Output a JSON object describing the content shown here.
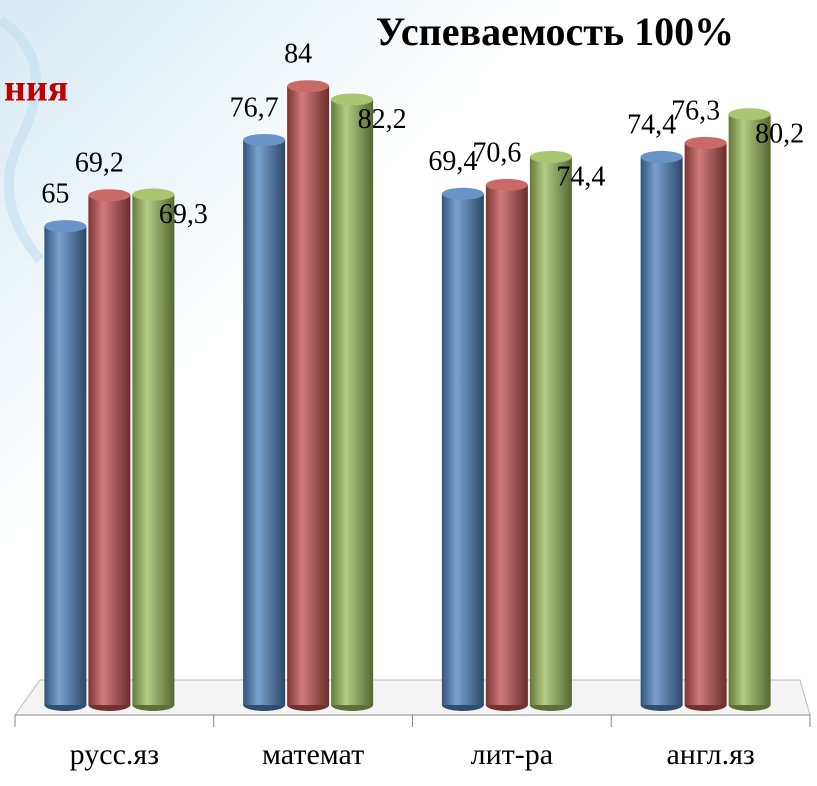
{
  "chart_data": {
    "type": "bar3d",
    "title": "Успеваемость 100%",
    "subtitle": "ния",
    "categories": [
      "русс.яз",
      "математ",
      "лит-ра",
      "англ.яз"
    ],
    "series": [
      {
        "color": "#4f81bd",
        "values": [
          65,
          76.7,
          69.4,
          74.4
        ],
        "value_labels": [
          "65",
          "76,7",
          "69,4",
          "74,4"
        ]
      },
      {
        "color": "#c0504d",
        "values": [
          69.2,
          84,
          70.6,
          76.3
        ],
        "value_labels": [
          "69,2",
          "84",
          "70,6",
          "76,3"
        ]
      },
      {
        "color": "#9bbb59",
        "values": [
          69.3,
          82.2,
          74.4,
          80.2
        ],
        "value_labels": [
          "69,3",
          "82,2",
          "74,4",
          "80,2"
        ]
      }
    ],
    "ylim": [
      0,
      90
    ]
  }
}
